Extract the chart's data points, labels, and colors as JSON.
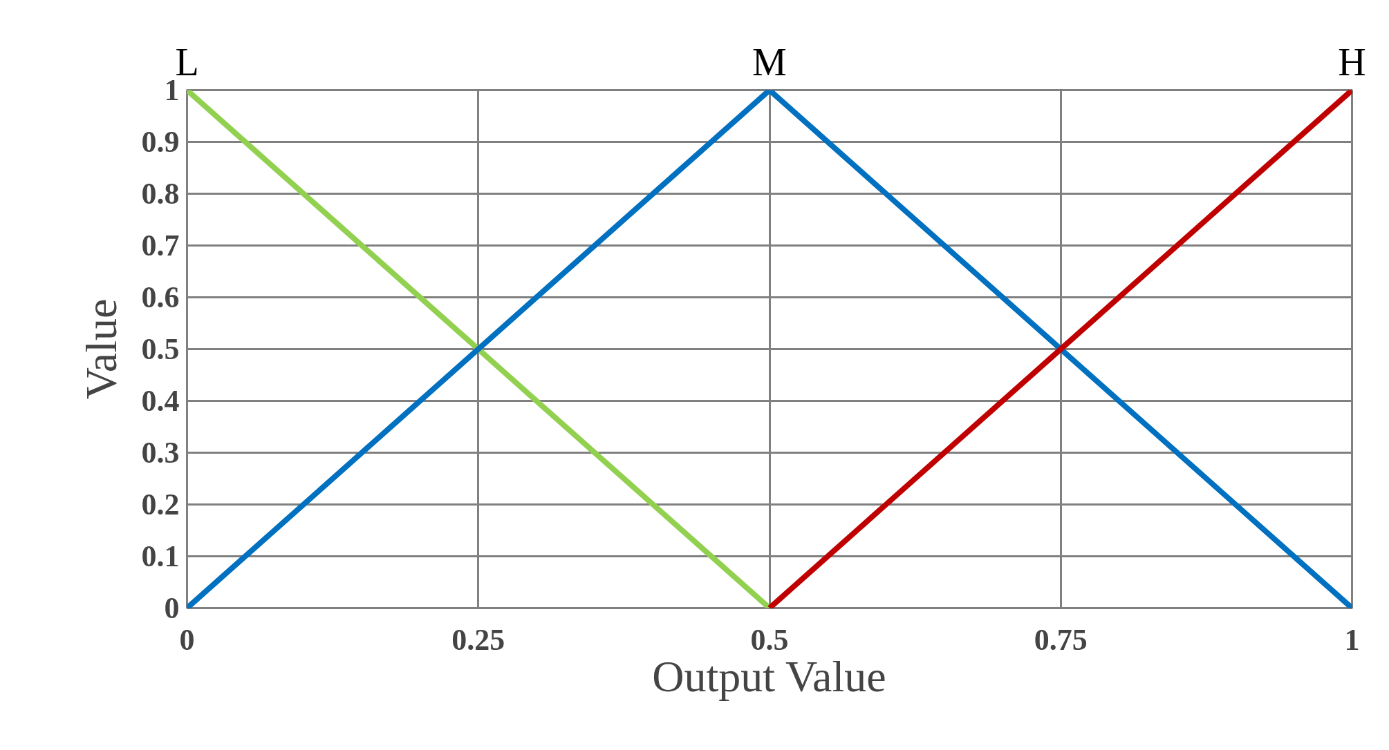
{
  "chart_data": {
    "type": "line",
    "xlabel": "Output Value",
    "ylabel": "Value",
    "xlim": [
      0,
      1
    ],
    "ylim": [
      0,
      1
    ],
    "xticks": [
      0,
      0.25,
      0.5,
      0.75,
      1
    ],
    "yticks": [
      0,
      0.1,
      0.2,
      0.3,
      0.4,
      0.5,
      0.6,
      0.7,
      0.8,
      0.9,
      1
    ],
    "grid": true,
    "line_style": "solid",
    "series": [
      {
        "name": "L",
        "color": "#92d050",
        "x": [
          0,
          0.5
        ],
        "values": [
          1,
          0
        ]
      },
      {
        "name": "M",
        "color": "#0070c0",
        "x": [
          0,
          0.5,
          1
        ],
        "values": [
          0,
          1,
          0
        ]
      },
      {
        "name": "H",
        "color": "#c00000",
        "x": [
          0.5,
          1
        ],
        "values": [
          0,
          1
        ]
      }
    ]
  }
}
